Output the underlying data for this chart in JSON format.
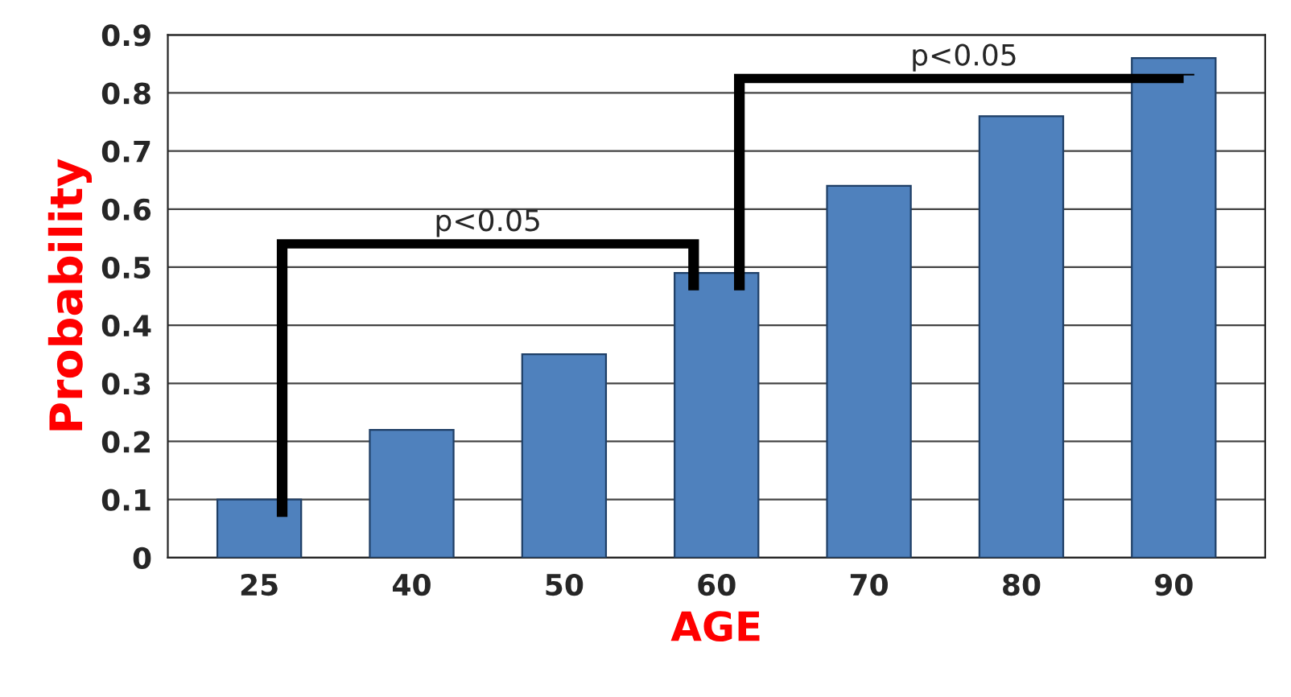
{
  "chart_data": {
    "type": "bar",
    "xlabel": "AGE",
    "ylabel": "Probability",
    "categories": [
      "25",
      "40",
      "50",
      "60",
      "70",
      "80",
      "90"
    ],
    "values": [
      0.1,
      0.22,
      0.35,
      0.49,
      0.64,
      0.76,
      0.86
    ],
    "color": "#4f81bd",
    "ylim": [
      0,
      0.9
    ],
    "yticks": [
      0,
      0.1,
      0.2,
      0.3,
      0.4,
      0.5,
      0.6,
      0.7,
      0.8,
      0.9
    ],
    "grid": "y",
    "annotations": [
      "p<0.05",
      "p<0.05"
    ]
  }
}
